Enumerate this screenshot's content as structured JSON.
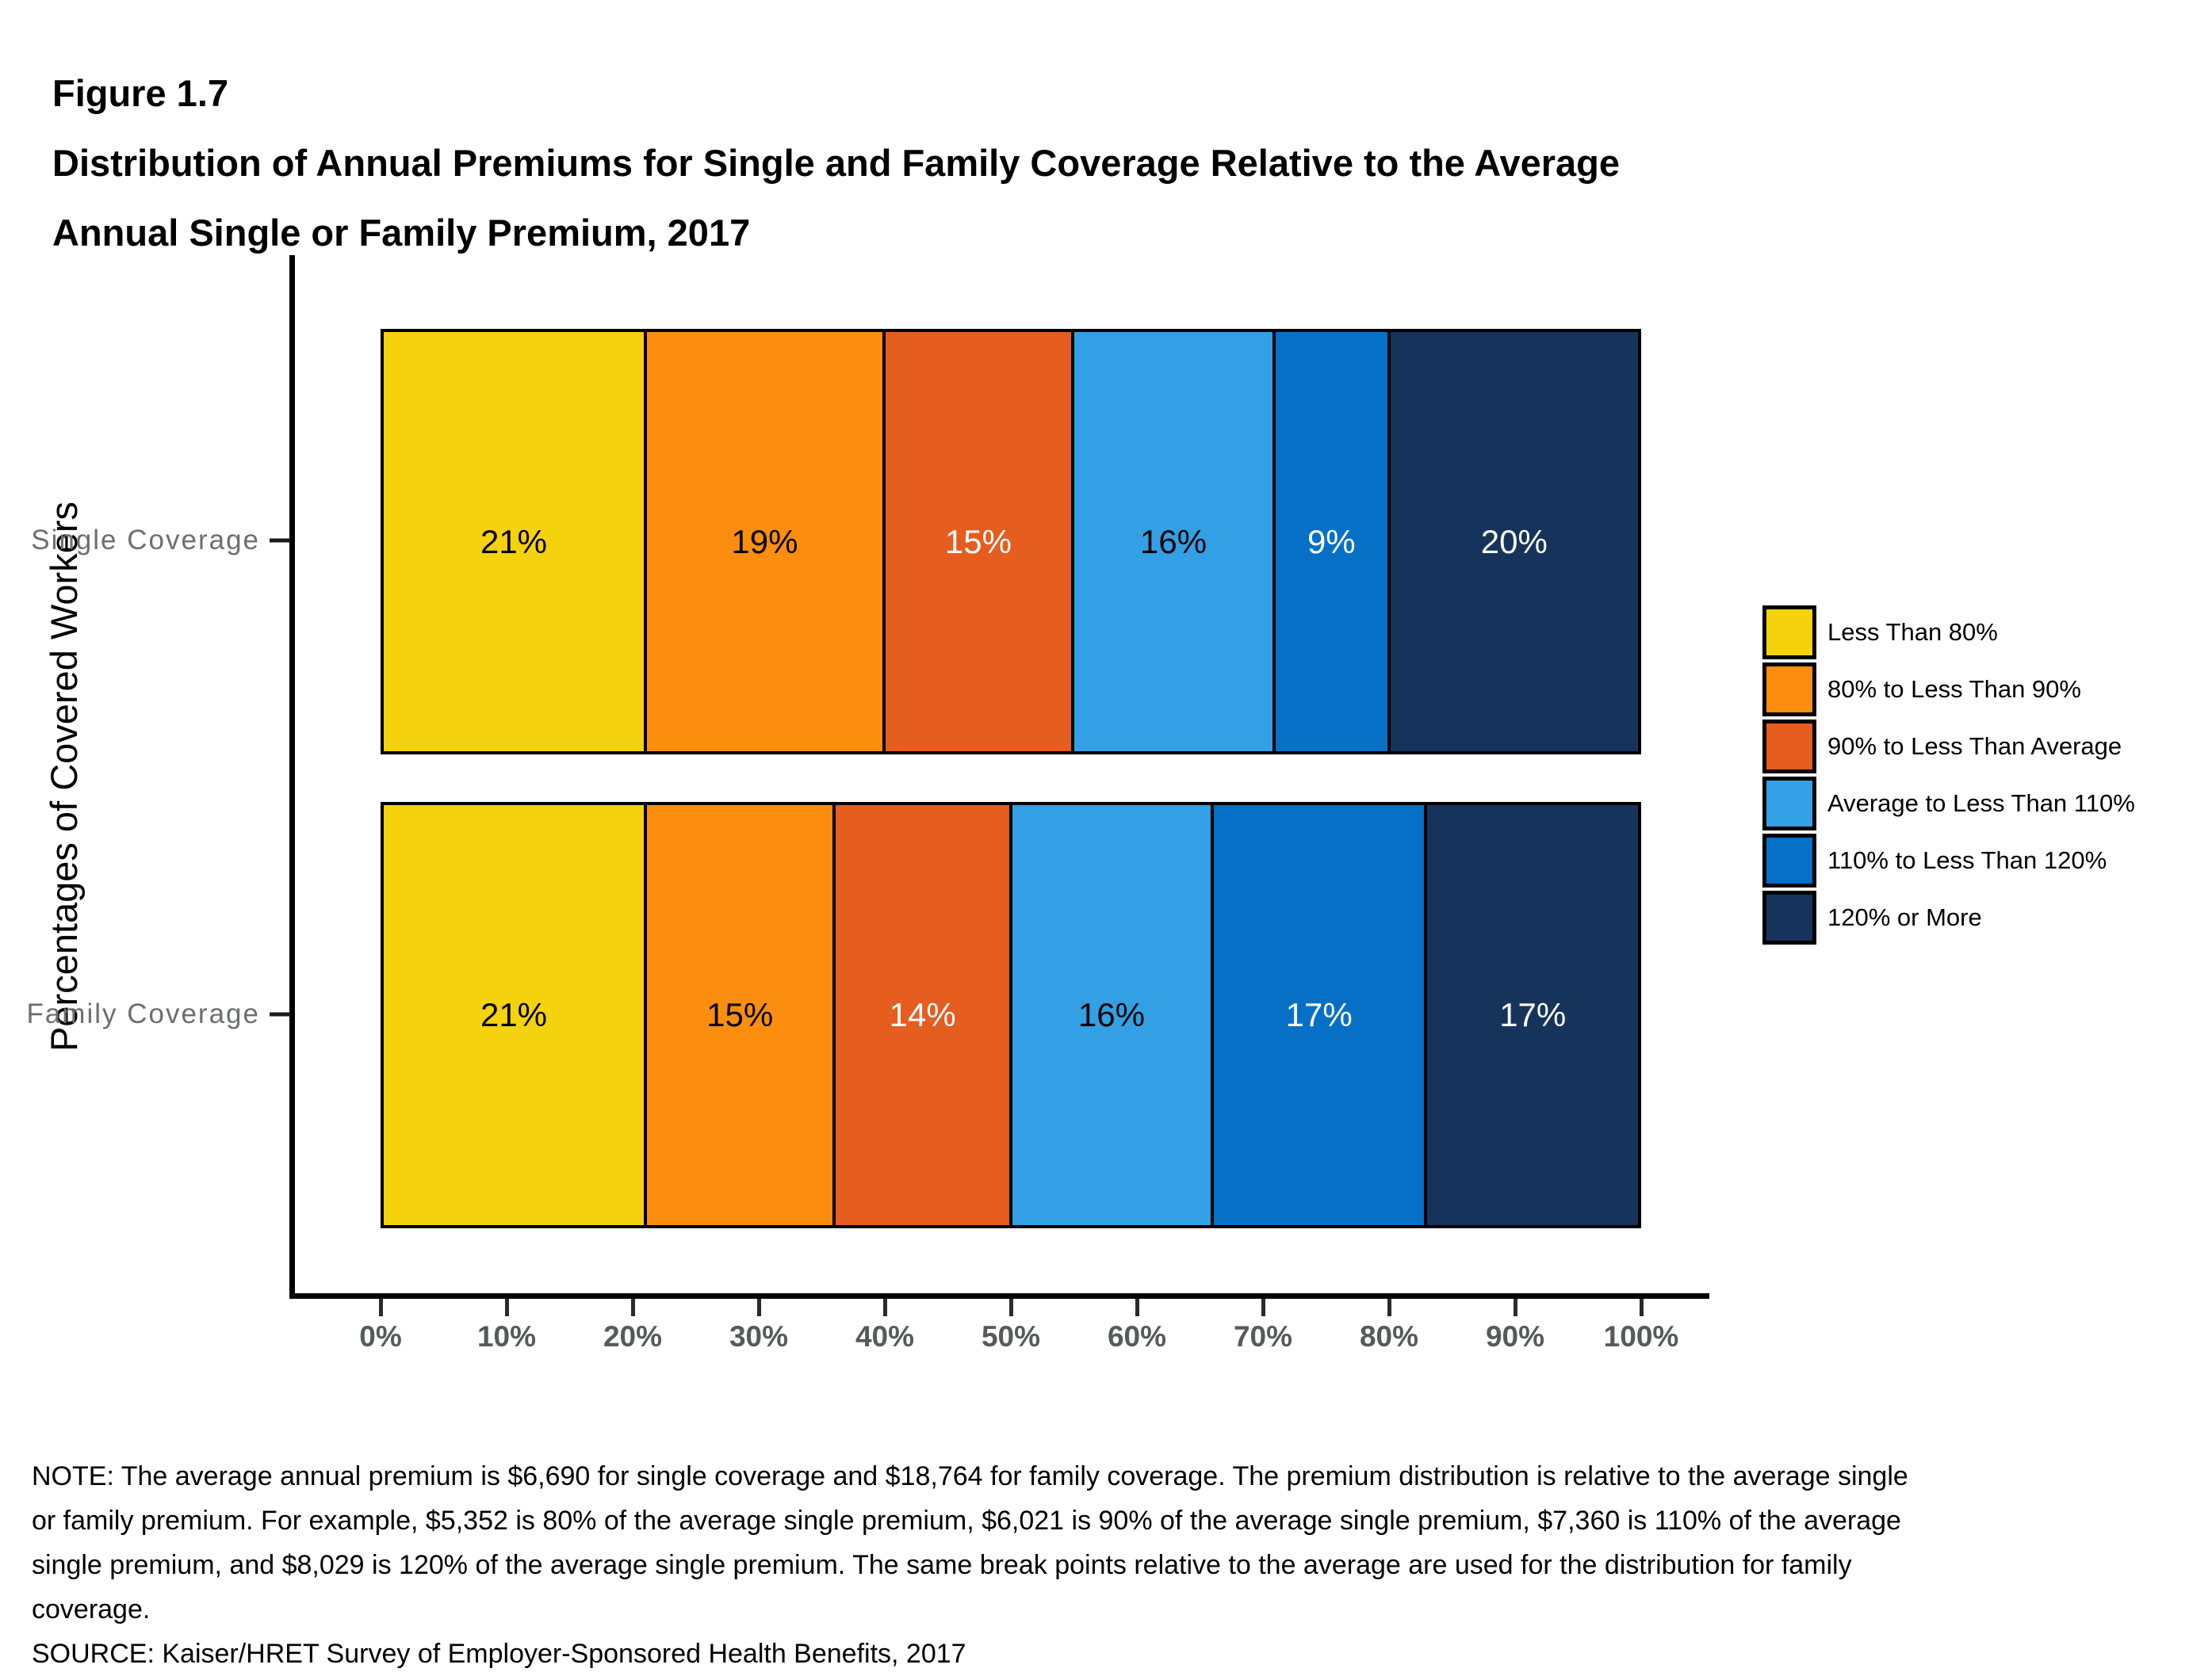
{
  "figure": {
    "label": "Figure 1.7",
    "title_line1": "Distribution of Annual Premiums for Single and Family Coverage Relative to the Average",
    "title_line2": "Annual Single or Family Premium, 2017"
  },
  "chart_data": {
    "type": "bar",
    "orientation": "horizontal",
    "stacked": true,
    "title": "Distribution of Annual Premiums for Single and Family Coverage Relative to the Average Annual Single or Family Premium, 2017",
    "ylabel": "Percentages of Covered Workers",
    "xlabel": "",
    "categories": [
      "Single Coverage",
      "Family Coverage"
    ],
    "series": [
      {
        "name": "Less Than 80%",
        "color": "#F4D20D",
        "label_color": "#000000",
        "values": [
          21,
          21
        ]
      },
      {
        "name": "80% to Less Than 90%",
        "color": "#FB8E0F",
        "label_color": "#000000",
        "values": [
          19,
          15
        ]
      },
      {
        "name": "90% to Less Than Average",
        "color": "#E55D1F",
        "label_color": "#FFFFFF",
        "values": [
          15,
          14
        ]
      },
      {
        "name": "Average to Less Than 110%",
        "color": "#33A0E5",
        "label_color": "#000000",
        "values": [
          16,
          16
        ]
      },
      {
        "name": "110% to Less Than 120%",
        "color": "#0670C7",
        "label_color": "#FFFFFF",
        "values": [
          9,
          17
        ]
      },
      {
        "name": "120% or More",
        "color": "#16345B",
        "label_color": "#FFFFFF",
        "values": [
          20,
          17
        ]
      }
    ],
    "x_ticks": [
      "0%",
      "10%",
      "20%",
      "30%",
      "40%",
      "50%",
      "60%",
      "70%",
      "80%",
      "90%",
      "100%"
    ],
    "xlim": [
      0,
      100
    ],
    "value_label_format": "{value}%",
    "legend_position": "right",
    "grid": false
  },
  "note": "NOTE: The average annual premium is $6,690 for single coverage and $18,764 for family coverage. The premium distribution is relative to the average single or family premium. For example, $5,352 is 80% of the average single premium, $6,021 is 90% of the average single premium, $7,360 is 110% of the average single premium, and $8,029 is 120% of the average single premium. The same break points relative to the average are used for the distribution for family coverage.",
  "source": "SOURCE: Kaiser/HRET Survey of Employer-Sponsored Health Benefits, 2017"
}
